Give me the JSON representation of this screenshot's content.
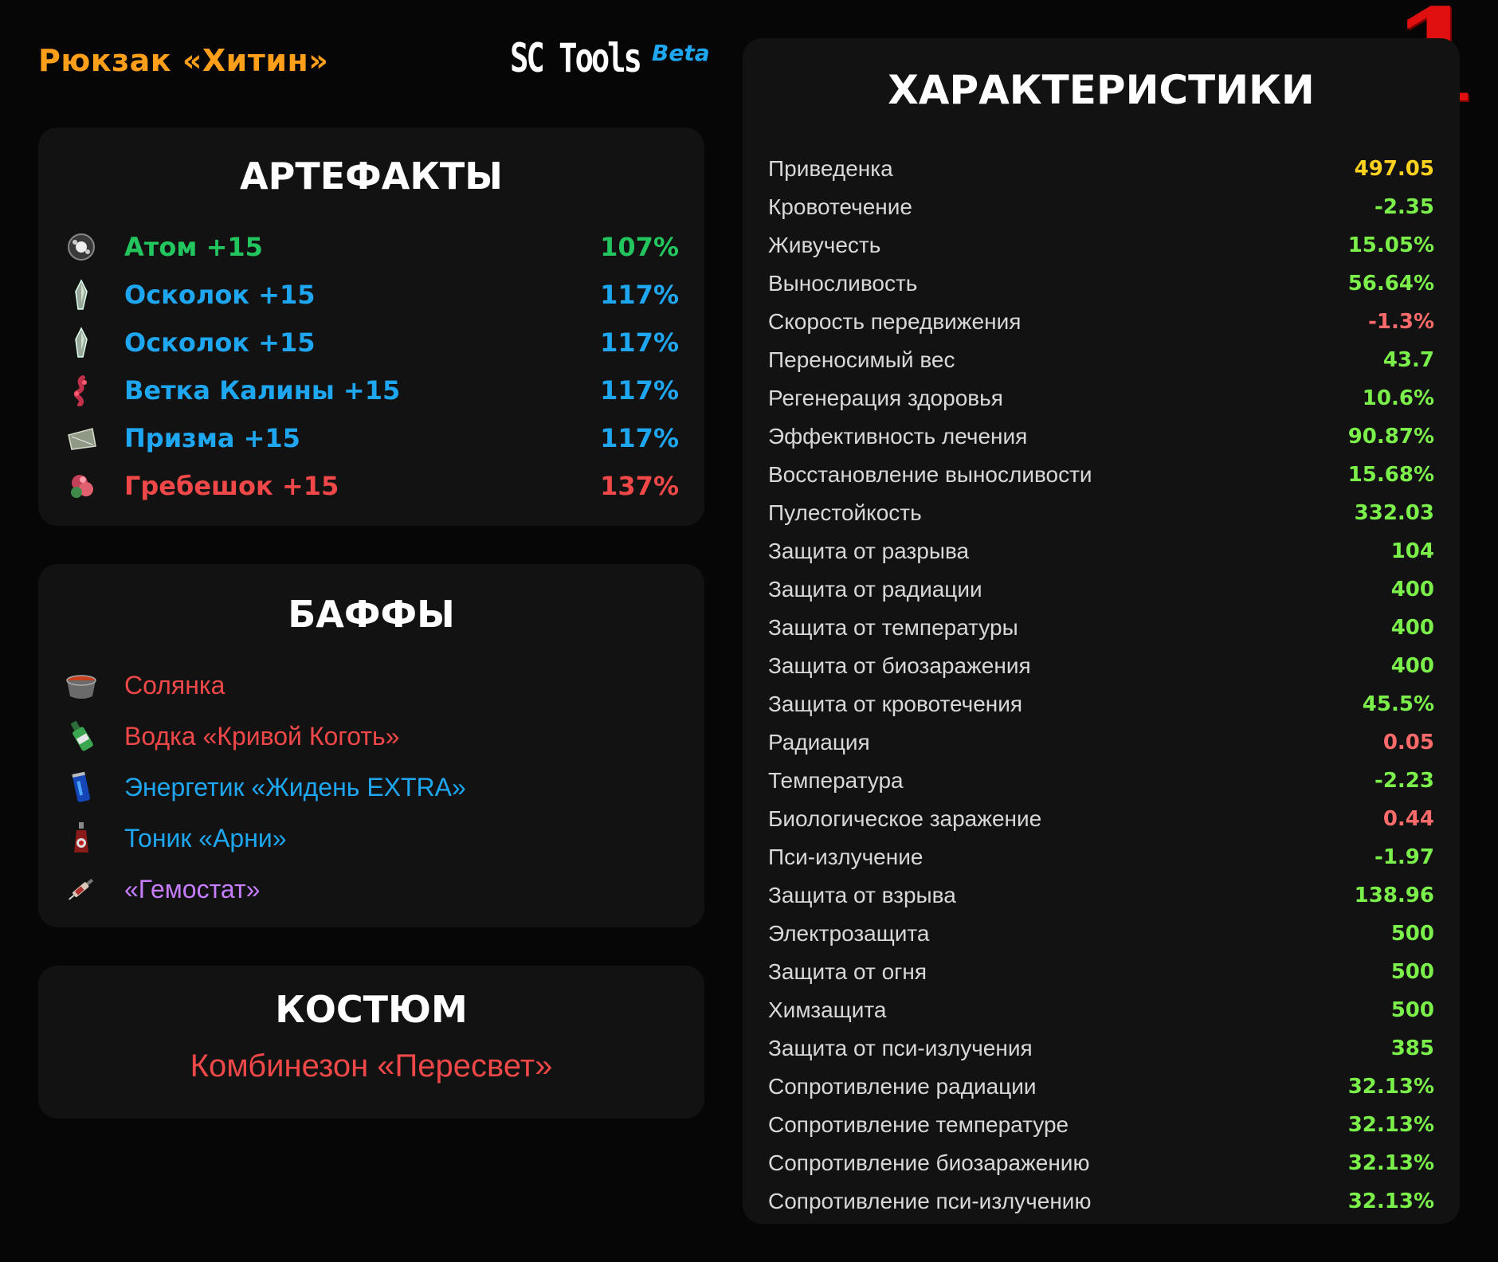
{
  "header": {
    "backpack": "Рюкзак «Хитин»",
    "brand": "SC Tools",
    "beta": "Beta",
    "corner_number": "1"
  },
  "colors": {
    "green": "#22c55e",
    "blue": "#1ea7f0",
    "red": "#f04848",
    "purple": "#c77dff",
    "yellow": "#ffd21f",
    "stat_green": "#7cf04a",
    "stat_red": "#ff6b6b",
    "orange": "#ff9f1a"
  },
  "artifacts": {
    "title": "АРТЕФАКТЫ",
    "items": [
      {
        "name": "Атом +15",
        "value": "107%",
        "color": "#22c55e",
        "icon": "atom-icon"
      },
      {
        "name": "Осколок +15",
        "value": "117%",
        "color": "#1ea7f0",
        "icon": "shard-icon"
      },
      {
        "name": "Осколок +15",
        "value": "117%",
        "color": "#1ea7f0",
        "icon": "shard-icon"
      },
      {
        "name": "Ветка Калины +15",
        "value": "117%",
        "color": "#1ea7f0",
        "icon": "viburnum-branch-icon"
      },
      {
        "name": "Призма +15",
        "value": "117%",
        "color": "#1ea7f0",
        "icon": "prism-icon"
      },
      {
        "name": "Гребешок +15",
        "value": "137%",
        "color": "#f04848",
        "icon": "comb-icon"
      }
    ]
  },
  "buffs": {
    "title": "БАФФЫ",
    "items": [
      {
        "name": "Солянка",
        "color": "#f04848",
        "icon": "soup-pot-icon"
      },
      {
        "name": "Водка «Кривой Коготь»",
        "color": "#f04848",
        "icon": "vodka-bottle-icon"
      },
      {
        "name": "Энергетик «Жидень EXTRA»",
        "color": "#1ea7f0",
        "icon": "energy-can-icon"
      },
      {
        "name": "Тоник «Арни»",
        "color": "#1ea7f0",
        "icon": "tonic-bottle-icon"
      },
      {
        "name": "«Гемостат»",
        "color": "#c77dff",
        "icon": "syringe-icon"
      }
    ]
  },
  "suit": {
    "title": "КОСТЮМ",
    "name": "Комбинезон «Пересвет»"
  },
  "stats": {
    "title": "ХАРАКТЕРИСТИКИ",
    "items": [
      {
        "label": "Приведенка",
        "value": "497.05",
        "color": "#ffd21f"
      },
      {
        "label": "Кровотечение",
        "value": "-2.35",
        "color": "#7cf04a"
      },
      {
        "label": "Живучесть",
        "value": "15.05%",
        "color": "#7cf04a"
      },
      {
        "label": "Выносливость",
        "value": "56.64%",
        "color": "#7cf04a"
      },
      {
        "label": "Скорость передвижения",
        "value": "-1.3%",
        "color": "#ff6b6b"
      },
      {
        "label": "Переносимый вес",
        "value": "43.7",
        "color": "#7cf04a"
      },
      {
        "label": "Регенерация здоровья",
        "value": "10.6%",
        "color": "#7cf04a"
      },
      {
        "label": "Эффективность лечения",
        "value": "90.87%",
        "color": "#7cf04a"
      },
      {
        "label": "Восстановление выносливости",
        "value": "15.68%",
        "color": "#7cf04a"
      },
      {
        "label": "Пулестойкость",
        "value": "332.03",
        "color": "#7cf04a"
      },
      {
        "label": "Защита от разрыва",
        "value": "104",
        "color": "#7cf04a"
      },
      {
        "label": "Защита от радиации",
        "value": "400",
        "color": "#7cf04a"
      },
      {
        "label": "Защита от температуры",
        "value": "400",
        "color": "#7cf04a"
      },
      {
        "label": "Защита от биозаражения",
        "value": "400",
        "color": "#7cf04a"
      },
      {
        "label": "Защита от кровотечения",
        "value": "45.5%",
        "color": "#7cf04a"
      },
      {
        "label": "Радиация",
        "value": "0.05",
        "color": "#ff6b6b"
      },
      {
        "label": "Температура",
        "value": "-2.23",
        "color": "#7cf04a"
      },
      {
        "label": "Биологическое заражение",
        "value": "0.44",
        "color": "#ff6b6b"
      },
      {
        "label": "Пси-излучение",
        "value": "-1.97",
        "color": "#7cf04a"
      },
      {
        "label": "Защита от взрыва",
        "value": "138.96",
        "color": "#7cf04a"
      },
      {
        "label": "Электрозащита",
        "value": "500",
        "color": "#7cf04a"
      },
      {
        "label": "Защита от огня",
        "value": "500",
        "color": "#7cf04a"
      },
      {
        "label": "Химзащита",
        "value": "500",
        "color": "#7cf04a"
      },
      {
        "label": "Защита от пси-излучения",
        "value": "385",
        "color": "#7cf04a"
      },
      {
        "label": "Сопротивление радиации",
        "value": "32.13%",
        "color": "#7cf04a"
      },
      {
        "label": "Сопротивление температуре",
        "value": "32.13%",
        "color": "#7cf04a"
      },
      {
        "label": "Сопротивление биозаражению",
        "value": "32.13%",
        "color": "#7cf04a"
      },
      {
        "label": "Сопротивление пси-излучению",
        "value": "32.13%",
        "color": "#7cf04a"
      }
    ]
  }
}
